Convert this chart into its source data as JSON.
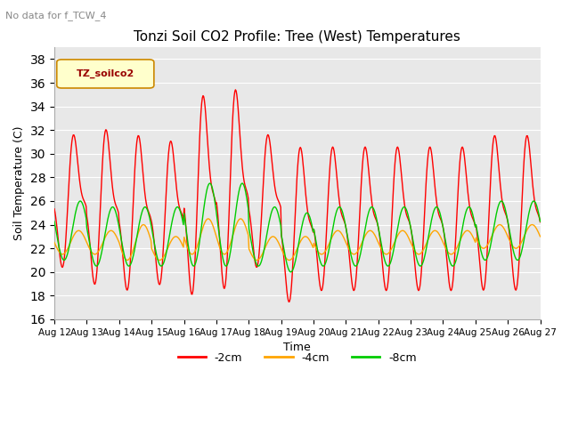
{
  "title": "Tonzi Soil CO2 Profile: Tree (West) Temperatures",
  "subtitle": "No data for f_TCW_4",
  "ylabel": "Soil Temperature (C)",
  "xlabel": "Time",
  "legend_label": "TZ_soilco2",
  "series_labels": [
    "-2cm",
    "-4cm",
    "-8cm"
  ],
  "series_colors": [
    "#ff0000",
    "#ffa500",
    "#00cc00"
  ],
  "ylim": [
    16,
    39
  ],
  "yticks": [
    16,
    18,
    20,
    22,
    24,
    26,
    28,
    30,
    32,
    34,
    36,
    38
  ],
  "xtick_labels": [
    "Aug 12",
    "Aug 13",
    "Aug 14",
    "Aug 15",
    "Aug 16",
    "Aug 17",
    "Aug 18",
    "Aug 19",
    "Aug 20",
    "Aug 21",
    "Aug 22",
    "Aug 23",
    "Aug 24",
    "Aug 25",
    "Aug 26",
    "Aug 27"
  ],
  "background_color": "#ffffff",
  "plot_bg_color": "#e8e8e8",
  "grid_color": "#ffffff",
  "linewidth": 1.0,
  "day_means_2cm": [
    26,
    25.5,
    25,
    25,
    26.5,
    27,
    26,
    24,
    24.5,
    24.5,
    24.5,
    24.5,
    24.5,
    25,
    25
  ],
  "day_amps_2cm": [
    6,
    7,
    7,
    6.5,
    9,
    9,
    6,
    7,
    6.5,
    6.5,
    6.5,
    6.5,
    6.5,
    7,
    7
  ],
  "day_means_4cm": [
    22.5,
    22.5,
    22.5,
    22,
    23,
    23,
    22,
    22,
    22.5,
    22.5,
    22.5,
    22.5,
    22.5,
    23,
    23
  ],
  "day_amps_4cm": [
    1.0,
    1.0,
    1.5,
    1.0,
    1.5,
    1.5,
    1.0,
    1.0,
    1.0,
    1.0,
    1.0,
    1.0,
    1.0,
    1.0,
    1.0
  ],
  "day_means_8cm": [
    23.5,
    23,
    23,
    23,
    24,
    24,
    23,
    22.5,
    23,
    23,
    23,
    23,
    23,
    23.5,
    23.5
  ],
  "day_amps_8cm": [
    2.5,
    2.5,
    2.5,
    2.5,
    3.5,
    3.5,
    2.5,
    2.5,
    2.5,
    2.5,
    2.5,
    2.5,
    2.5,
    2.5,
    2.5
  ]
}
